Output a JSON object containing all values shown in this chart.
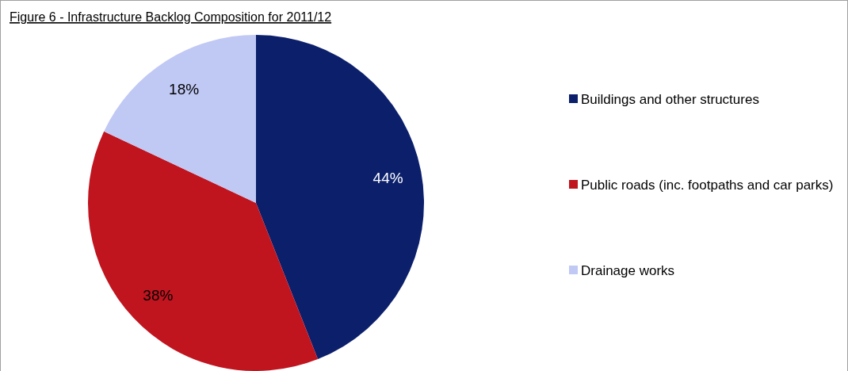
{
  "chart_data": {
    "type": "pie",
    "title": "Figure 6 - Infrastructure Backlog Composition for 2011/12",
    "categories": [
      "Buildings and other structures",
      "Public roads (inc. footpaths and car parks)",
      "Drainage works"
    ],
    "values": [
      44,
      38,
      18
    ],
    "value_labels": [
      "44%",
      "38%",
      "18%"
    ],
    "colors": [
      "#0b1f6b",
      "#c0141f",
      "#c0c8f4"
    ],
    "legend": "right"
  }
}
